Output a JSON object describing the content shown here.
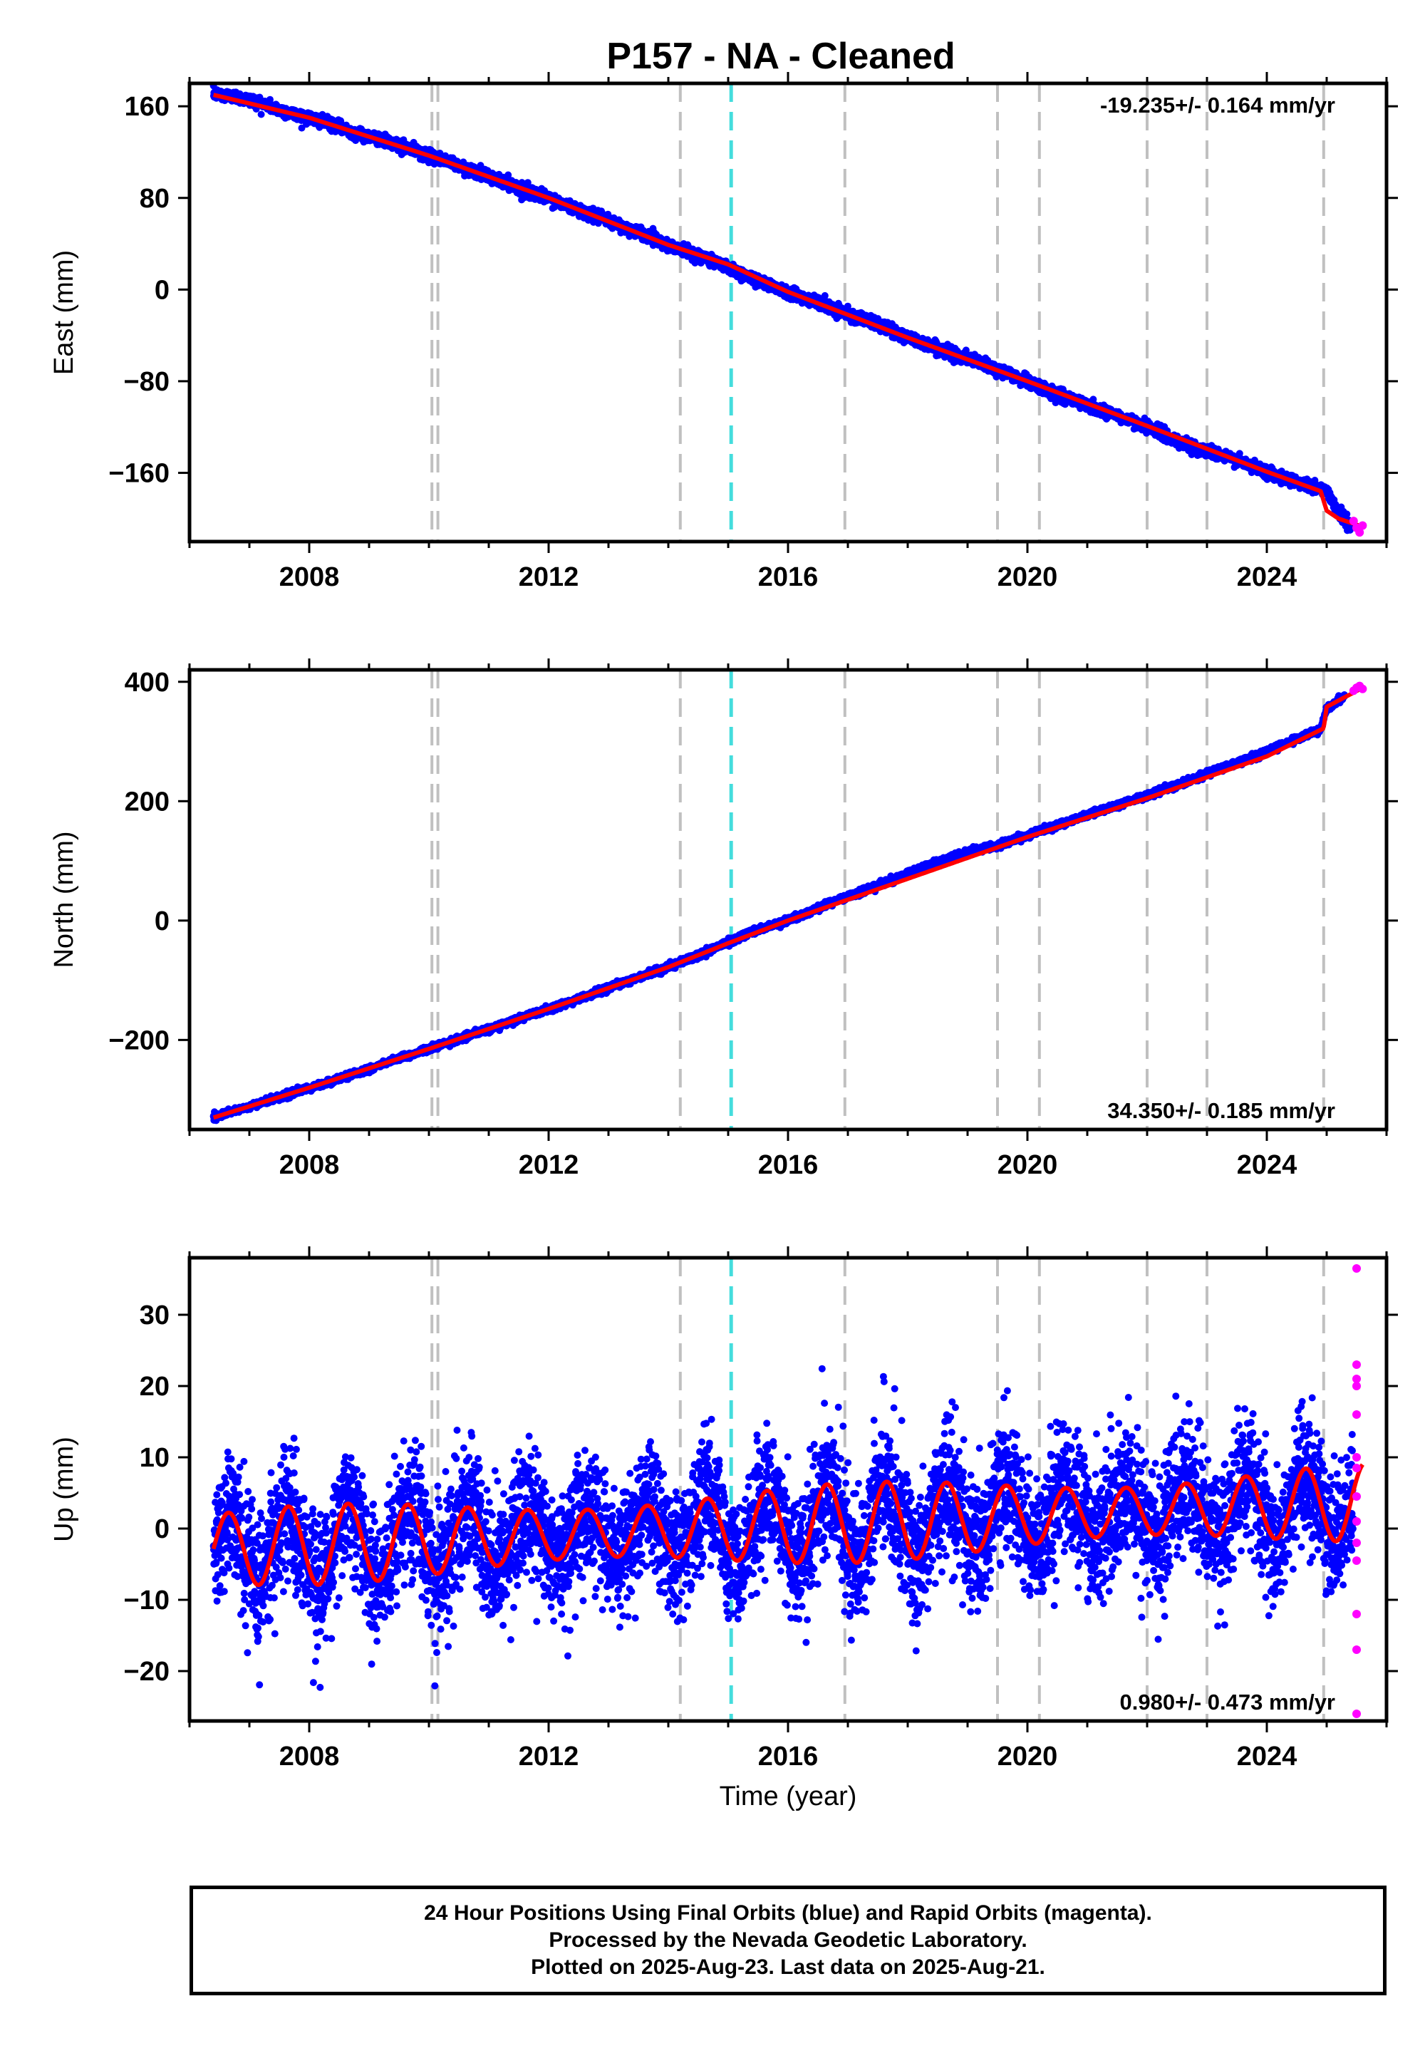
{
  "title": "P157  - NA - Cleaned",
  "chart_data": [
    {
      "type": "scatter",
      "component": "East",
      "ylabel": "East (mm)",
      "xlabel": "",
      "xlim": [
        2006.0,
        2026.0
      ],
      "ylim": [
        -220,
        180
      ],
      "yticks": [
        160,
        80,
        0,
        -80,
        -160
      ],
      "ytick_labels": [
        "160",
        "80",
        "0",
        "−80",
        "−160"
      ],
      "xticks": [
        2008,
        2012,
        2016,
        2020,
        2024
      ],
      "xtick_labels": [
        "2008",
        "2012",
        "2016",
        "2020",
        "2024"
      ],
      "rate_label": "-19.235+/- 0.164 mm/yr",
      "rate_position": "top-right",
      "series": [
        {
          "name": "Final Orbits",
          "color": "#0000ff",
          "kind": "points",
          "x": [
            2006.4,
            2006.8,
            2007.2,
            2007.6,
            2008.0,
            2008.4,
            2008.8,
            2009.2,
            2009.6,
            2010.0,
            2010.4,
            2010.8,
            2011.2,
            2011.6,
            2012.0,
            2012.4,
            2012.8,
            2013.2,
            2013.6,
            2014.0,
            2014.4,
            2014.8,
            2015.2,
            2015.6,
            2016.0,
            2016.4,
            2016.8,
            2017.2,
            2017.6,
            2018.0,
            2018.4,
            2018.8,
            2019.2,
            2019.6,
            2020.0,
            2020.4,
            2020.8,
            2021.2,
            2021.6,
            2022.0,
            2022.4,
            2022.8,
            2023.2,
            2023.6,
            2024.0,
            2024.4,
            2024.8,
            2025.0,
            2025.2,
            2025.4
          ],
          "y": [
            171,
            168,
            163,
            155,
            150,
            144,
            136,
            131,
            124,
            117,
            110,
            102,
            95,
            87,
            80,
            71,
            64,
            56,
            48,
            39,
            32,
            24,
            14,
            6,
            -2,
            -9,
            -17,
            -25,
            -33,
            -42,
            -49,
            -57,
            -64,
            -72,
            -80,
            -90,
            -97,
            -105,
            -112,
            -119,
            -130,
            -138,
            -144,
            -151,
            -159,
            -166,
            -173,
            -175,
            -195,
            -205
          ]
        },
        {
          "name": "Rapid Orbits",
          "color": "#ff00ff",
          "kind": "points",
          "x": [
            2025.45,
            2025.5,
            2025.55,
            2025.6
          ],
          "y": [
            -202,
            -208,
            -212,
            -206
          ]
        },
        {
          "name": "Model",
          "color": "#ff0000",
          "kind": "line",
          "x": [
            2006.4,
            2008.0,
            2010.0,
            2012.0,
            2014.0,
            2015.0,
            2016.0,
            2018.0,
            2020.0,
            2022.0,
            2024.0,
            2024.9,
            2025.0,
            2025.2,
            2025.6
          ],
          "y": [
            170,
            150,
            117,
            80,
            39,
            22,
            -2,
            -42,
            -80,
            -119,
            -159,
            -176,
            -193,
            -200,
            -207
          ]
        }
      ],
      "offsets_gray": [
        2010.05,
        2010.15,
        2014.2,
        2016.95,
        2019.5,
        2020.2,
        2022.0,
        2023.0,
        2024.95
      ],
      "offsets_cyan": [
        2015.05
      ]
    },
    {
      "type": "scatter",
      "component": "North",
      "ylabel": "North (mm)",
      "xlabel": "",
      "xlim": [
        2006.0,
        2026.0
      ],
      "ylim": [
        -350,
        420
      ],
      "yticks": [
        400,
        200,
        0,
        -200
      ],
      "ytick_labels": [
        "400",
        "200",
        "0",
        "−200"
      ],
      "xticks": [
        2008,
        2012,
        2016,
        2020,
        2024
      ],
      "xtick_labels": [
        "2008",
        "2012",
        "2016",
        "2020",
        "2024"
      ],
      "rate_label": "34.350+/- 0.185 mm/yr",
      "rate_position": "bottom-right",
      "series": [
        {
          "name": "Final Orbits",
          "color": "#0000ff",
          "kind": "points",
          "x": [
            2006.4,
            2007.0,
            2007.6,
            2008.2,
            2008.8,
            2009.4,
            2010.0,
            2010.6,
            2011.2,
            2011.8,
            2012.4,
            2013.0,
            2013.6,
            2014.2,
            2014.8,
            2015.4,
            2016.0,
            2016.6,
            2017.2,
            2017.8,
            2018.4,
            2019.0,
            2019.6,
            2020.2,
            2020.8,
            2021.4,
            2022.0,
            2022.6,
            2023.2,
            2023.8,
            2024.4,
            2024.9,
            2025.0,
            2025.3
          ],
          "y": [
            -330,
            -312,
            -292,
            -275,
            -255,
            -235,
            -215,
            -195,
            -175,
            -155,
            -135,
            -112,
            -92,
            -70,
            -45,
            -18,
            0,
            25,
            48,
            70,
            95,
            115,
            128,
            150,
            170,
            190,
            210,
            230,
            255,
            275,
            300,
            320,
            355,
            375
          ]
        },
        {
          "name": "Rapid Orbits",
          "color": "#ff00ff",
          "kind": "points",
          "x": [
            2025.45,
            2025.5,
            2025.55,
            2025.6
          ],
          "y": [
            385,
            390,
            393,
            388
          ]
        },
        {
          "name": "Model",
          "color": "#ff0000",
          "kind": "line",
          "x": [
            2006.4,
            2008.0,
            2010.0,
            2012.0,
            2014.0,
            2015.0,
            2016.0,
            2018.0,
            2020.0,
            2022.0,
            2024.0,
            2024.95,
            2025.0,
            2025.6
          ],
          "y": [
            -330,
            -280,
            -215,
            -148,
            -78,
            -38,
            0,
            70,
            140,
            205,
            275,
            322,
            358,
            390
          ]
        }
      ],
      "offsets_gray": [
        2010.05,
        2010.15,
        2014.2,
        2016.95,
        2019.5,
        2020.2,
        2022.0,
        2023.0,
        2024.95
      ],
      "offsets_cyan": [
        2015.05
      ]
    },
    {
      "type": "scatter",
      "component": "Up",
      "ylabel": "Up (mm)",
      "xlabel": "Time (year)",
      "xlim": [
        2006.0,
        2026.0
      ],
      "ylim": [
        -27,
        38
      ],
      "yticks": [
        30,
        20,
        10,
        0,
        -10,
        -20
      ],
      "ytick_labels": [
        "30",
        "20",
        "10",
        "0",
        "−10",
        "−20"
      ],
      "xticks": [
        2008,
        2012,
        2016,
        2020,
        2024
      ],
      "xtick_labels": [
        "2008",
        "2012",
        "2016",
        "2020",
        "2024"
      ],
      "rate_label": "0.980+/- 0.473 mm/yr",
      "rate_position": "bottom-right",
      "seasonal_model": {
        "amplitude": 4.5,
        "phase_year": 0.4,
        "trend": 0.98,
        "offset_at_2006": -3
      },
      "scatter_noise_std": 4.5,
      "series": [
        {
          "name": "Final Orbits",
          "color": "#0000ff",
          "kind": "points"
        },
        {
          "name": "Rapid Orbits",
          "color": "#ff00ff",
          "kind": "points",
          "x": [
            2025.5,
            2025.5,
            2025.5,
            2025.5,
            2025.5,
            2025.5,
            2025.5,
            2025.5,
            2025.5,
            2025.5,
            2025.5,
            2025.5,
            2025.5,
            2025.5
          ],
          "y": [
            36.5,
            23,
            21,
            20,
            16,
            10,
            8.5,
            4.5,
            1,
            -2,
            -4.5,
            -12,
            -17,
            -26
          ]
        },
        {
          "name": "Model",
          "color": "#ff0000",
          "kind": "line"
        }
      ],
      "offsets_gray": [
        2010.05,
        2010.15,
        2014.2,
        2016.95,
        2019.5,
        2020.2,
        2022.0,
        2023.0,
        2024.95
      ],
      "offsets_cyan": [
        2015.05
      ]
    }
  ],
  "footer": {
    "line1": "24 Hour Positions Using Final Orbits (blue) and Rapid Orbits (magenta).",
    "line2": "Processed by the Nevada Geodetic Laboratory.",
    "line3": "Plotted on 2025-Aug-23. Last data on 2025-Aug-21."
  }
}
